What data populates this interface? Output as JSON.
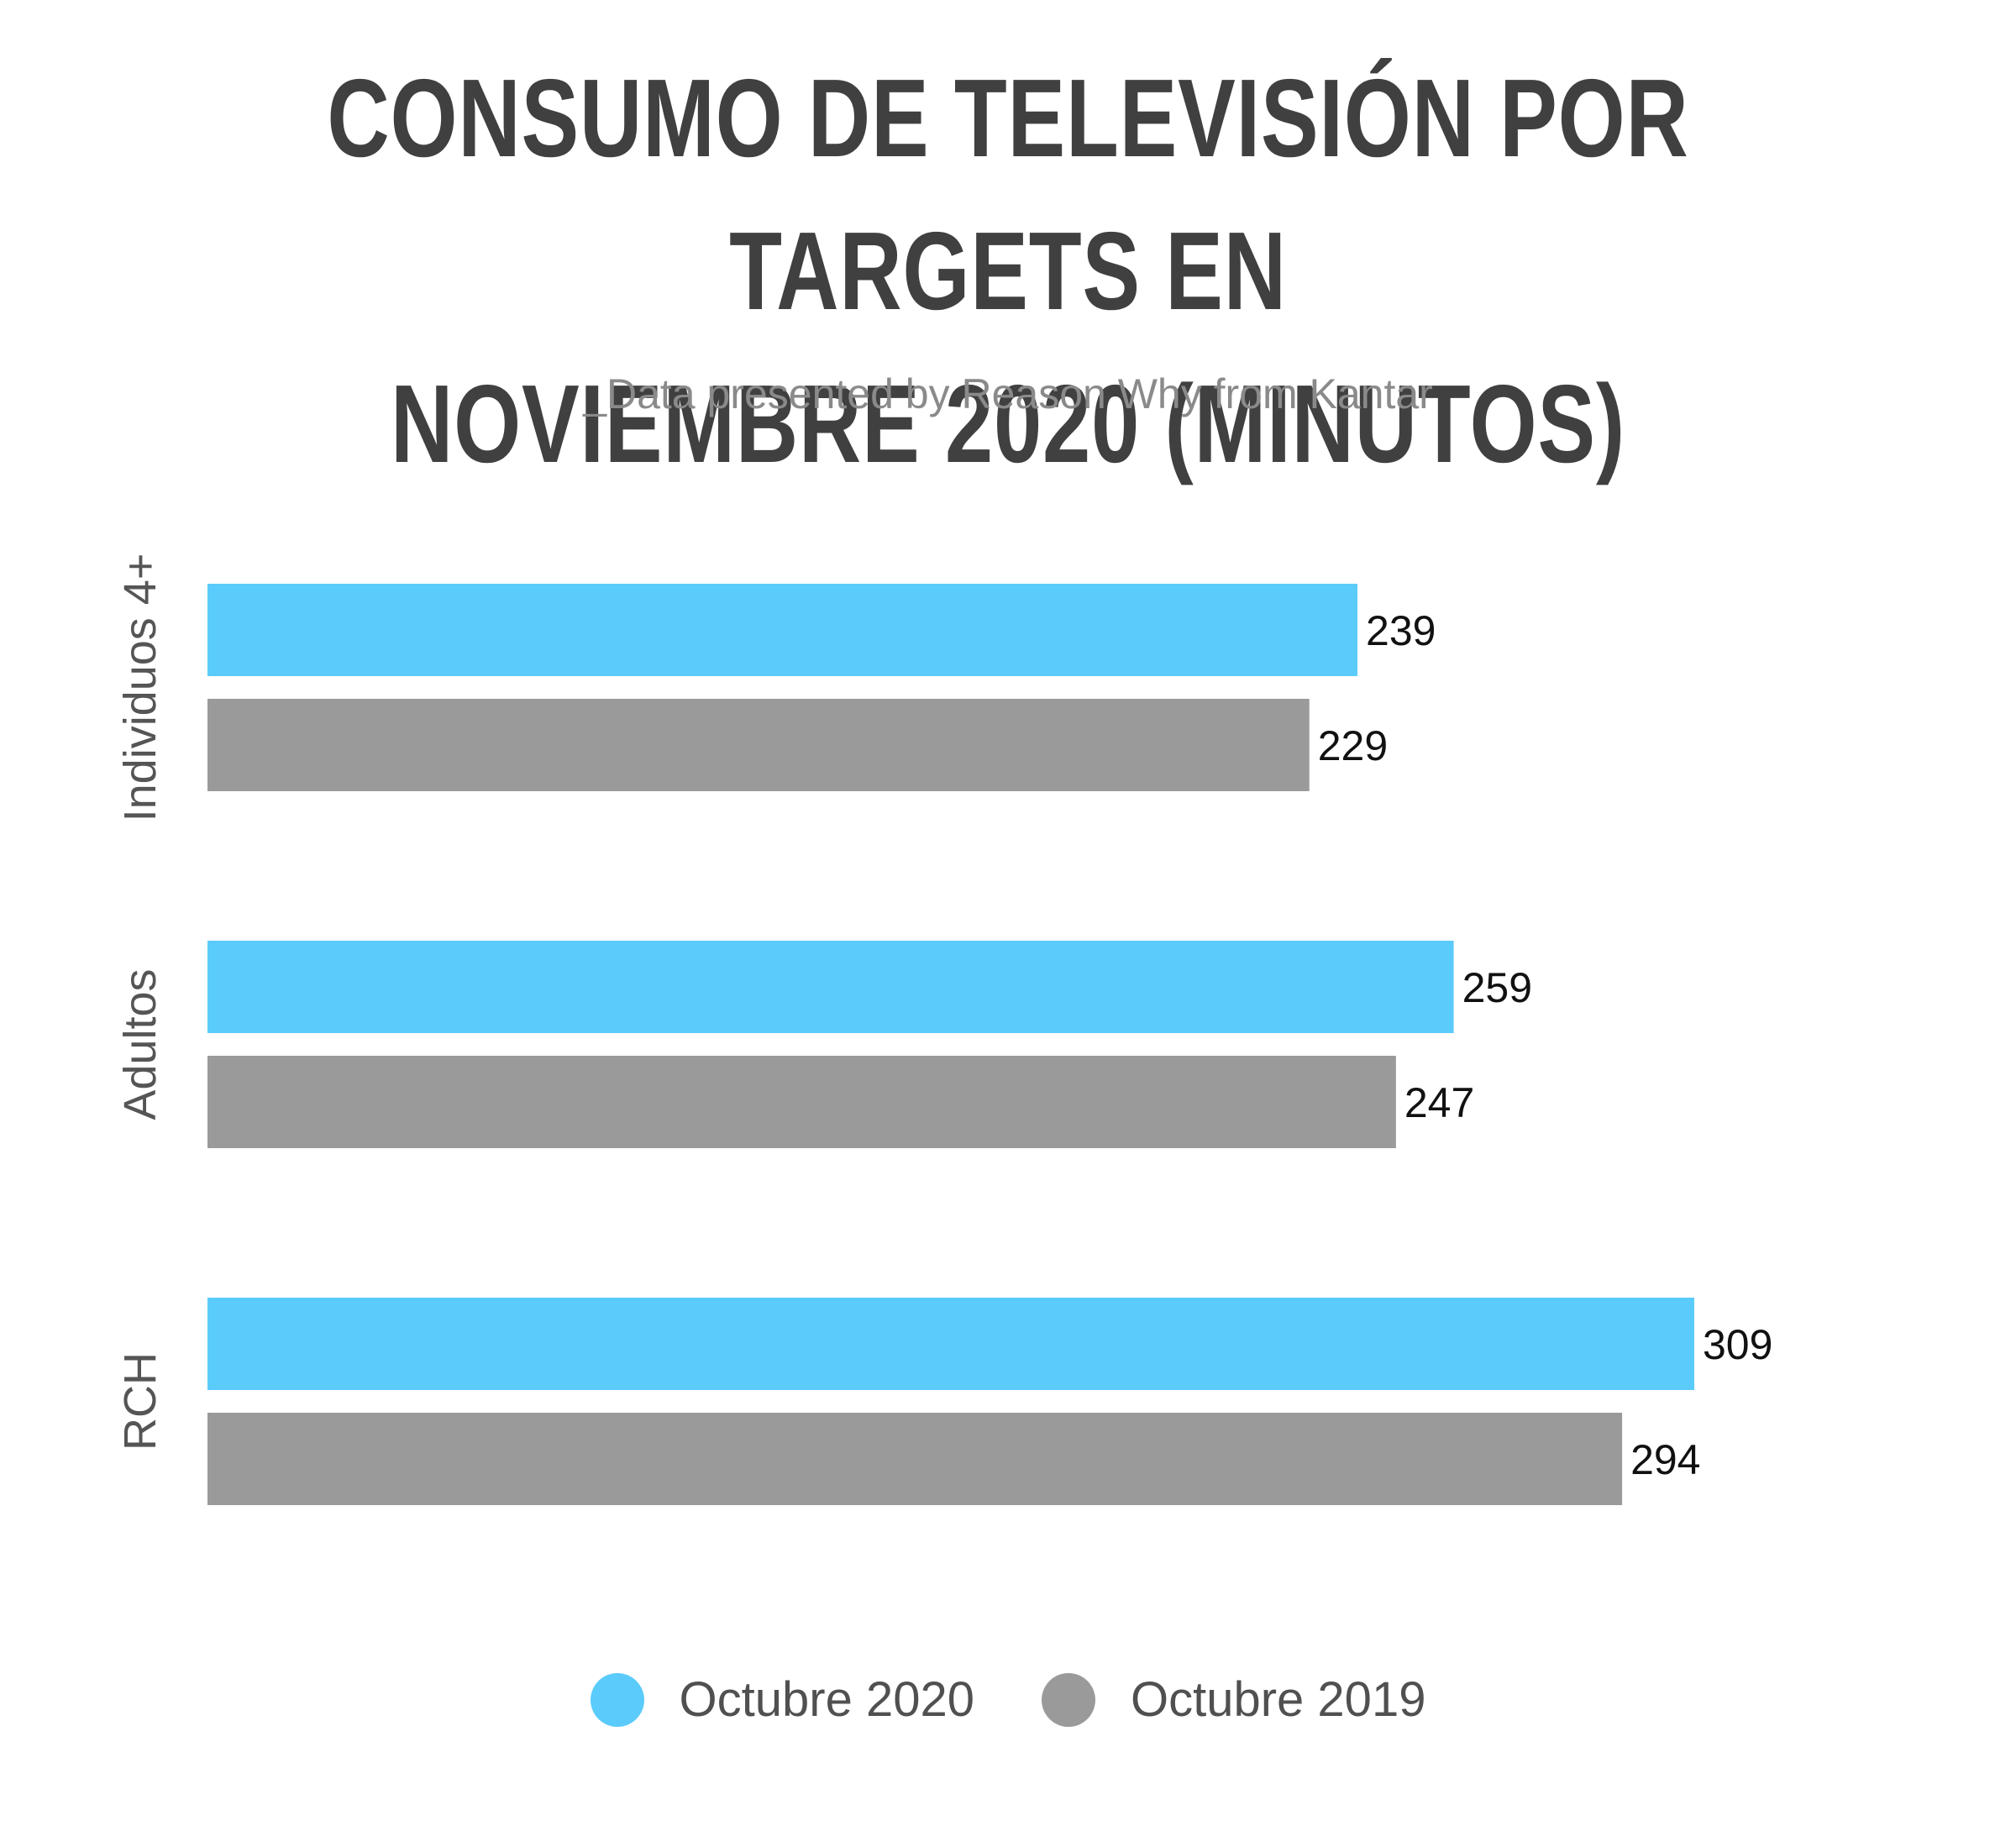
{
  "chart_data": {
    "type": "bar",
    "orientation": "horizontal",
    "title_lines": [
      "CONSUMO DE TELEVISIÓN POR TARGETS EN",
      "NOVIEMBRE 2020 (MINUTOS)"
    ],
    "subtitle": "_Data presented by Reason Why from Kantar",
    "categories": [
      "Individuos 4+",
      "Adultos",
      "RCH"
    ],
    "series": [
      {
        "name": "Octubre 2020",
        "color": "#5bcbfb",
        "values": [
          239,
          259,
          309
        ]
      },
      {
        "name": "Octubre 2019",
        "color": "#9a9a9a",
        "values": [
          229,
          247,
          294
        ]
      }
    ],
    "xlim": [
      0,
      309
    ],
    "grid": false,
    "legend_position": "bottom-center",
    "xlabel": "",
    "ylabel": ""
  }
}
